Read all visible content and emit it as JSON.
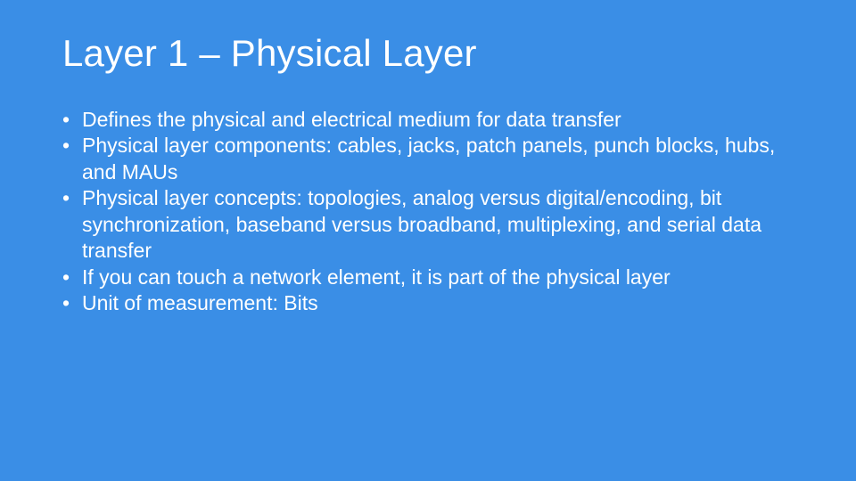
{
  "slide": {
    "title": "Layer 1 – Physical Layer",
    "bullets": [
      "Defines the physical and electrical medium for data transfer",
      "Physical layer components: cables, jacks, patch panels, punch blocks, hubs, and MAUs",
      "Physical layer concepts: topologies, analog versus digital/encoding, bit synchronization, baseband versus broadband, multiplexing, and serial data transfer",
      "If you can touch a network element, it is part of the physical layer",
      "Unit of measurement: Bits"
    ],
    "background_color": "#3a8ee6",
    "text_color": "#ffffff",
    "title_fontsize": 42,
    "body_fontsize": 23,
    "font_family": "Segoe UI Light"
  }
}
